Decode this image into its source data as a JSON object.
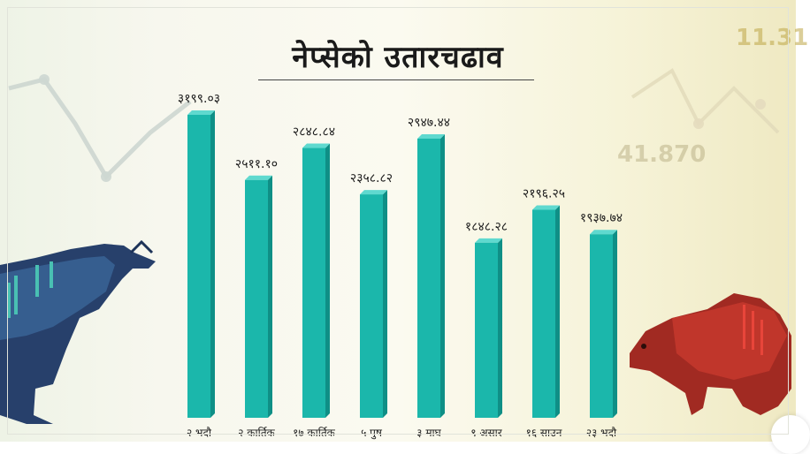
{
  "background": {
    "numbers": [
      "11.31",
      "41.870"
    ]
  },
  "colors": {
    "bar_front": "#1bb7ab",
    "bar_side": "#0f8f86",
    "bar_top": "#5fd9cf"
  },
  "chart_data": {
    "type": "bar",
    "title": "नेप्सेको उतारचढाव",
    "categories": [
      "२ भदौ",
      "२ कार्तिक",
      "१७ कार्तिक",
      "५ पुष",
      "३ माघ",
      "९ असार",
      "१६ साउन",
      "२३ भदौ"
    ],
    "values": [
      3199.03,
      2511.1,
      2848.84,
      2358.82,
      2947.44,
      1848.28,
      2196.25,
      1937.74
    ],
    "data_labels": [
      "३१९९.०३",
      "२५११.१०",
      "२८४८.८४",
      "२३५८.८२",
      "२९४७.४४",
      "१८४८.२८",
      "२१९६.२५",
      "१९३७.७४"
    ],
    "xlabel": "",
    "ylabel": "",
    "ylim": [
      0,
      3199.03
    ],
    "grid": false,
    "legend": "none"
  }
}
